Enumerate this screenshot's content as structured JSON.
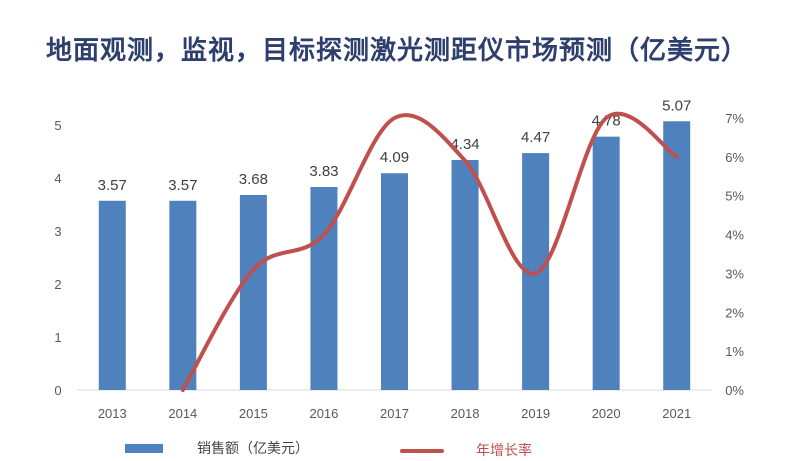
{
  "title": "地面观测，监视，目标探测激光测距仪市场预测（亿美元）",
  "colors": {
    "bar": "#4f81bd",
    "line": "#c0504d",
    "axis_text": "#595959",
    "title": "#2e3f6e"
  },
  "legend": {
    "bar_label": "销售额（亿美元）",
    "line_label": "年增长率"
  },
  "chart_data": {
    "type": "bar",
    "categories": [
      "2013",
      "2014",
      "2015",
      "2016",
      "2017",
      "2018",
      "2019",
      "2020",
      "2021"
    ],
    "series": [
      {
        "name": "销售额（亿美元）",
        "type": "bar",
        "axis": "left",
        "values": [
          3.57,
          3.57,
          3.68,
          3.83,
          4.09,
          4.34,
          4.47,
          4.78,
          5.07
        ],
        "labels": [
          "3.57",
          "3.57",
          "3.68",
          "3.83",
          "4.09",
          "4.34",
          "4.47",
          "4.78",
          "5.07"
        ]
      },
      {
        "name": "年增长率",
        "type": "line",
        "axis": "right",
        "values": [
          null,
          0.0,
          3.1,
          4.0,
          7.0,
          5.9,
          3.0,
          7.0,
          6.0
        ]
      }
    ],
    "ylim_left": [
      0,
      5
    ],
    "yticks_left": [
      "0",
      "1",
      "2",
      "3",
      "4",
      "5"
    ],
    "ylim_right": [
      0,
      7
    ],
    "yticks_right": [
      "0%",
      "1%",
      "2%",
      "3%",
      "4%",
      "5%",
      "6%",
      "7%"
    ],
    "grid": false,
    "legend_position": "bottom"
  }
}
